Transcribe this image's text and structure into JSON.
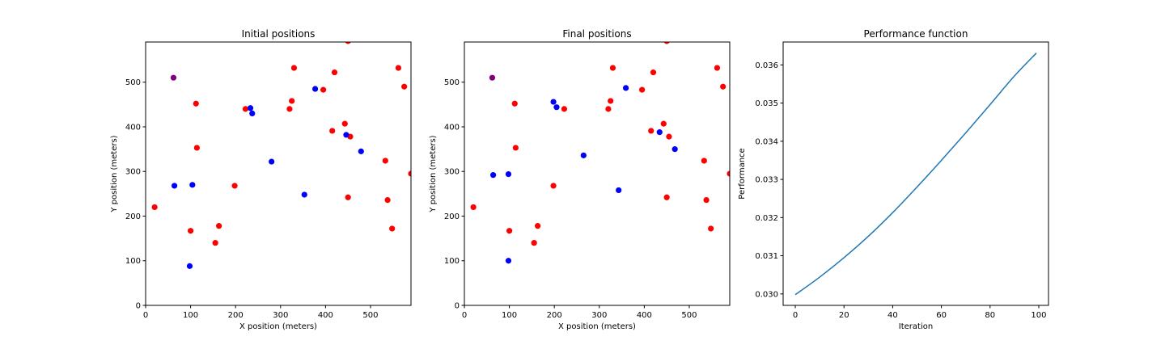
{
  "colors": {
    "red": "#ff0000",
    "blue": "#0000ff",
    "purple": "#800080",
    "line": "#1f77b4"
  },
  "chart_data": [
    {
      "type": "scatter",
      "title": "Initial positions",
      "xlabel": "X position (meters)",
      "ylabel": "Y position (meters)",
      "xlim": [
        0,
        590
      ],
      "ylim": [
        0,
        590
      ],
      "xticks": [
        0,
        100,
        200,
        300,
        400,
        500
      ],
      "yticks": [
        0,
        100,
        200,
        300,
        400,
        500
      ],
      "grid": false,
      "series": [
        {
          "color": "#ff0000",
          "points": [
            [
              20,
              220
            ],
            [
              100,
              167
            ],
            [
              112,
              452
            ],
            [
              114,
              353
            ],
            [
              155,
              140
            ],
            [
              163,
              178
            ],
            [
              198,
              268
            ],
            [
              222,
              440
            ],
            [
              320,
              440
            ],
            [
              325,
              458
            ],
            [
              330,
              532
            ],
            [
              395,
              483
            ],
            [
              415,
              391
            ],
            [
              420,
              522
            ],
            [
              443,
              407
            ],
            [
              450,
              242
            ],
            [
              450,
              592
            ],
            [
              455,
              378
            ],
            [
              533,
              324
            ],
            [
              538,
              236
            ],
            [
              548,
              172
            ],
            [
              562,
              532
            ],
            [
              575,
              490
            ],
            [
              590,
              295
            ]
          ]
        },
        {
          "color": "#0000ff",
          "points": [
            [
              64,
              268
            ],
            [
              98,
              88
            ],
            [
              104,
              270
            ],
            [
              233,
              442
            ],
            [
              237,
              430
            ],
            [
              280,
              322
            ],
            [
              353,
              248
            ],
            [
              377,
              485
            ],
            [
              446,
              382
            ],
            [
              479,
              345
            ]
          ]
        },
        {
          "color": "#800080",
          "points": [
            [
              62,
              510
            ]
          ]
        }
      ]
    },
    {
      "type": "scatter",
      "title": "Final positions",
      "xlabel": "X position (meters)",
      "ylabel": "Y position (meters)",
      "xlim": [
        0,
        590
      ],
      "ylim": [
        0,
        590
      ],
      "xticks": [
        0,
        100,
        200,
        300,
        400,
        500
      ],
      "yticks": [
        0,
        100,
        200,
        300,
        400,
        500
      ],
      "grid": false,
      "series": [
        {
          "color": "#ff0000",
          "points": [
            [
              20,
              220
            ],
            [
              100,
              167
            ],
            [
              112,
              452
            ],
            [
              114,
              353
            ],
            [
              155,
              140
            ],
            [
              163,
              178
            ],
            [
              198,
              268
            ],
            [
              222,
              440
            ],
            [
              320,
              440
            ],
            [
              325,
              458
            ],
            [
              330,
              532
            ],
            [
              395,
              483
            ],
            [
              415,
              391
            ],
            [
              420,
              522
            ],
            [
              443,
              407
            ],
            [
              450,
              242
            ],
            [
              450,
              592
            ],
            [
              455,
              378
            ],
            [
              533,
              324
            ],
            [
              538,
              236
            ],
            [
              548,
              172
            ],
            [
              562,
              532
            ],
            [
              575,
              490
            ],
            [
              590,
              295
            ]
          ]
        },
        {
          "color": "#0000ff",
          "points": [
            [
              64,
              292
            ],
            [
              98,
              100
            ],
            [
              98,
              294
            ],
            [
              198,
              456
            ],
            [
              205,
              444
            ],
            [
              265,
              336
            ],
            [
              343,
              258
            ],
            [
              359,
              487
            ],
            [
              434,
              388
            ],
            [
              468,
              350
            ]
          ]
        },
        {
          "color": "#800080",
          "points": [
            [
              62,
              510
            ]
          ]
        }
      ]
    },
    {
      "type": "line",
      "title": "Performance function",
      "xlabel": "Iteration",
      "ylabel": "Performance",
      "xlim": [
        -5,
        104
      ],
      "ylim": [
        0.0297,
        0.0366
      ],
      "xticks": [
        0,
        20,
        40,
        60,
        80,
        100
      ],
      "yticks": [
        0.03,
        0.031,
        0.032,
        0.033,
        0.034,
        0.035,
        0.036
      ],
      "ytick_labels": [
        "0.030",
        "0.031",
        "0.032",
        "0.033",
        "0.034",
        "0.035",
        "0.036"
      ],
      "grid": false,
      "series": [
        {
          "color": "#1f77b4",
          "x": [
            0,
            10,
            20,
            30,
            40,
            50,
            60,
            70,
            80,
            90,
            99
          ],
          "y": [
            0.02998,
            0.03044,
            0.03095,
            0.03151,
            0.03213,
            0.0328,
            0.0335,
            0.03422,
            0.03496,
            0.03571,
            0.03631
          ]
        }
      ]
    }
  ]
}
